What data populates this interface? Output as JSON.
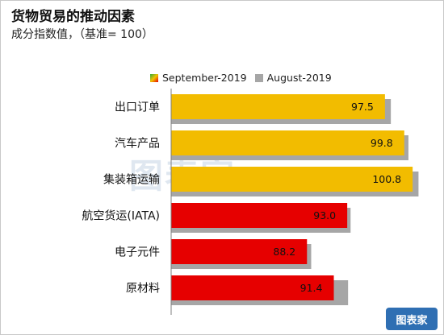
{
  "header": {
    "title": "货物贸易的推动因素",
    "subtitle": "成分指数值，（基准= 100）"
  },
  "branding": {
    "watermark": "图表家",
    "logo": "图表家"
  },
  "colors": {
    "september_gold": "#f2bc00",
    "september_red": "#e60000",
    "august_gray": "#a6a6a6"
  },
  "chart_data": {
    "type": "bar",
    "orientation": "horizontal",
    "title": "货物贸易的推动因素",
    "subtitle": "成分指数值，（基准= 100）",
    "legend_position": "top-right",
    "grid": false,
    "xlim": [
      72,
      103
    ],
    "categories": [
      "出口订单",
      "汽车产品",
      "集装箱运输",
      "航空货运(IATA)",
      "电子元件",
      "原材料"
    ],
    "series": [
      {
        "name": "September-2019",
        "values": [
          97.5,
          99.8,
          100.8,
          93.0,
          88.2,
          91.4
        ],
        "labels": [
          "97.5",
          "99.8",
          "100.8",
          "93.0",
          "88.2",
          "91.4"
        ],
        "colors": [
          "#f2bc00",
          "#f2bc00",
          "#f2bc00",
          "#e60000",
          "#e60000",
          "#e60000"
        ]
      },
      {
        "name": "August-2019",
        "values": [
          98.2,
          100.3,
          101.5,
          93.4,
          88.7,
          93.1
        ],
        "color": "#a6a6a6"
      }
    ]
  }
}
